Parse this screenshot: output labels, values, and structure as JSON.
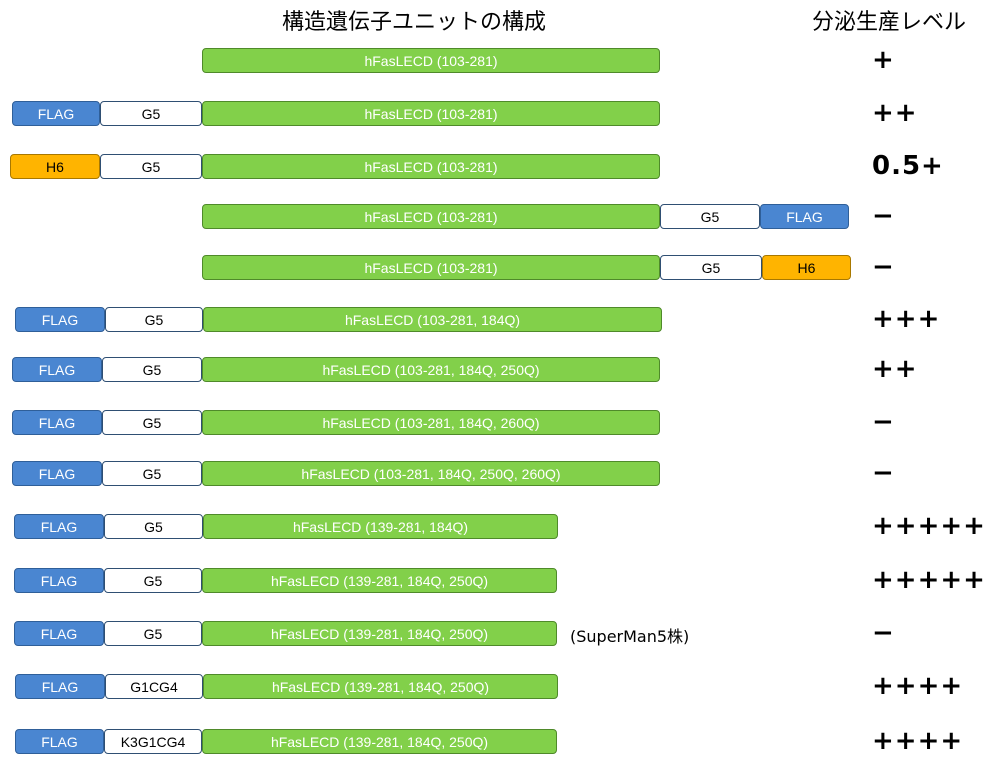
{
  "header": {
    "title_left": "構造遺伝子ユニットの構成",
    "title_right": "分泌生産レベル"
  },
  "rows": [
    {
      "segments": [
        {
          "type": "ecd",
          "label": "hFasLECD (103-281)"
        }
      ],
      "note": "",
      "level": "+"
    },
    {
      "segments": [
        {
          "type": "flag",
          "label": "FLAG"
        },
        {
          "type": "linker",
          "label": "G5"
        },
        {
          "type": "ecd",
          "label": "hFasLECD (103-281)"
        }
      ],
      "note": "",
      "level": "++"
    },
    {
      "segments": [
        {
          "type": "h6",
          "label": "H6"
        },
        {
          "type": "linker",
          "label": "G5"
        },
        {
          "type": "ecd",
          "label": "hFasLECD (103-281)"
        }
      ],
      "note": "",
      "level": "0.5+"
    },
    {
      "segments": [
        {
          "type": "ecd",
          "label": "hFasLECD (103-281)"
        },
        {
          "type": "linker",
          "label": "G5"
        },
        {
          "type": "flag",
          "label": "FLAG"
        }
      ],
      "note": "",
      "level": "−"
    },
    {
      "segments": [
        {
          "type": "ecd",
          "label": "hFasLECD (103-281)"
        },
        {
          "type": "linker",
          "label": "G5"
        },
        {
          "type": "h6",
          "label": "H6"
        }
      ],
      "note": "",
      "level": "−"
    },
    {
      "segments": [
        {
          "type": "flag",
          "label": "FLAG"
        },
        {
          "type": "linker",
          "label": "G5"
        },
        {
          "type": "ecd",
          "label": "hFasLECD (103-281, 184Q)"
        }
      ],
      "note": "",
      "level": "+++"
    },
    {
      "segments": [
        {
          "type": "flag",
          "label": "FLAG"
        },
        {
          "type": "linker",
          "label": "G5"
        },
        {
          "type": "ecd",
          "label": "hFasLECD (103-281, 184Q, 250Q)"
        }
      ],
      "note": "",
      "level": "++"
    },
    {
      "segments": [
        {
          "type": "flag",
          "label": "FLAG"
        },
        {
          "type": "linker",
          "label": "G5"
        },
        {
          "type": "ecd",
          "label": "hFasLECD (103-281, 184Q, 260Q)"
        }
      ],
      "note": "",
      "level": "−"
    },
    {
      "segments": [
        {
          "type": "flag",
          "label": "FLAG"
        },
        {
          "type": "linker",
          "label": "G5"
        },
        {
          "type": "ecd",
          "label": "hFasLECD (103-281, 184Q, 250Q, 260Q)"
        }
      ],
      "note": "",
      "level": "−"
    },
    {
      "segments": [
        {
          "type": "flag",
          "label": "FLAG"
        },
        {
          "type": "linker",
          "label": "G5"
        },
        {
          "type": "ecd",
          "label": "hFasLECD (139-281, 184Q)"
        }
      ],
      "note": "",
      "level": "+++++"
    },
    {
      "segments": [
        {
          "type": "flag",
          "label": "FLAG"
        },
        {
          "type": "linker",
          "label": "G5"
        },
        {
          "type": "ecd",
          "label": "hFasLECD (139-281, 184Q, 250Q)"
        }
      ],
      "note": "",
      "level": "+++++"
    },
    {
      "segments": [
        {
          "type": "flag",
          "label": "FLAG"
        },
        {
          "type": "linker",
          "label": "G5"
        },
        {
          "type": "ecd",
          "label": "hFasLECD (139-281, 184Q, 250Q)"
        }
      ],
      "note": "(SuperMan5株)",
      "level": "−"
    },
    {
      "segments": [
        {
          "type": "flag",
          "label": "FLAG"
        },
        {
          "type": "linker",
          "label": "G1CG4"
        },
        {
          "type": "ecd",
          "label": "hFasLECD (139-281, 184Q, 250Q)"
        }
      ],
      "note": "",
      "level": "++++"
    },
    {
      "segments": [
        {
          "type": "flag",
          "label": "FLAG"
        },
        {
          "type": "linker",
          "label": "K3G1CG4"
        },
        {
          "type": "ecd",
          "label": "hFasLECD (139-281, 184Q, 250Q)"
        }
      ],
      "note": "",
      "level": "++++"
    }
  ]
}
